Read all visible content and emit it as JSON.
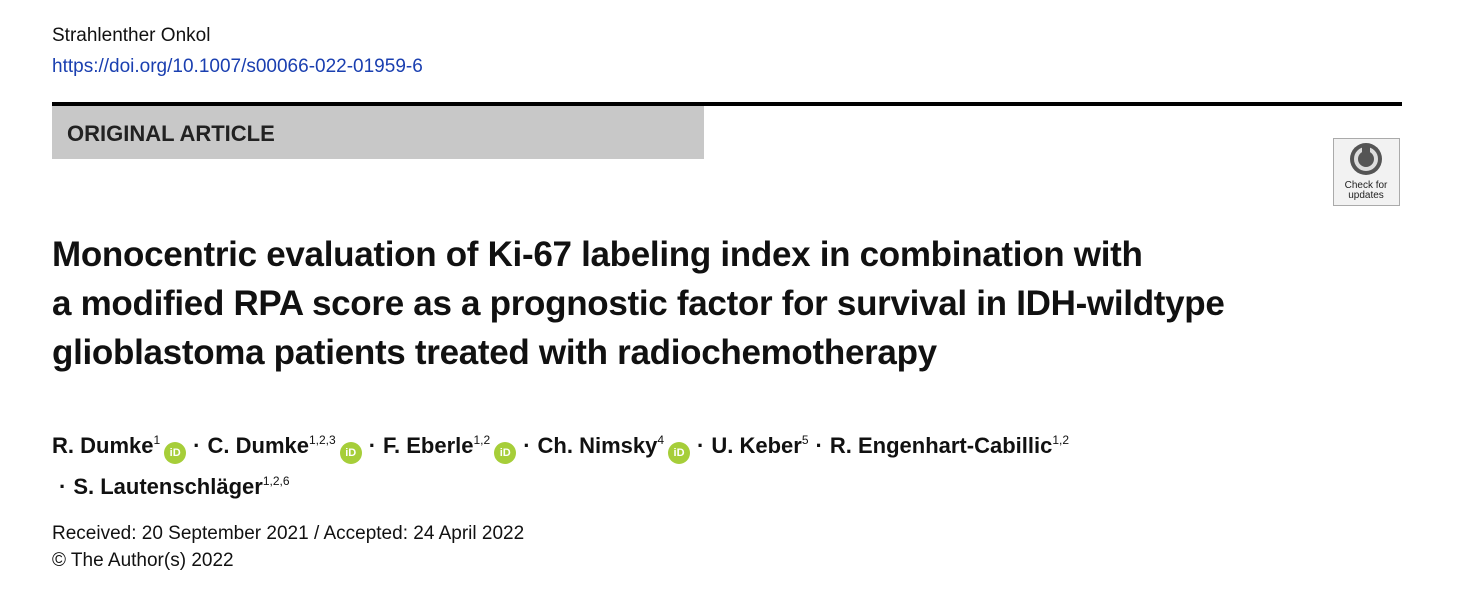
{
  "header": {
    "journal": "Strahlenther Onkol",
    "doi": "https://doi.org/10.1007/s00066-022-01959-6"
  },
  "article_type": "ORIGINAL ARTICLE",
  "badge": {
    "lines": [
      "Check for",
      "updates"
    ]
  },
  "title_lines": [
    "Monocentric evaluation of Ki-67 labeling index in combination with",
    "a modified RPA score as a prognostic factor for survival in IDH-wildtype",
    "glioblastoma patients treated with radiochemotherapy"
  ],
  "author_separator": "·",
  "orcid_icon_text": "iD",
  "author_lines": [
    [
      {
        "name": "R. Dumke",
        "affiliations": "1",
        "orcid": true
      },
      {
        "name": "C. Dumke",
        "affiliations": "1,2,3",
        "orcid": true
      },
      {
        "name": "F. Eberle",
        "affiliations": "1,2",
        "orcid": true
      },
      {
        "name": "Ch. Nimsky",
        "affiliations": "4",
        "orcid": true
      },
      {
        "name": "U. Keber",
        "affiliations": "5",
        "orcid": false
      },
      {
        "name": "R. Engenhart-Cabillic",
        "affiliations": "1,2",
        "orcid": false
      }
    ],
    [
      {
        "name": "S. Lautenschläger",
        "affiliations": "1,2,6",
        "orcid": false
      }
    ]
  ],
  "dates": {
    "received": "Received: 20 September 2021",
    "accepted": "Accepted: 24 April 2022",
    "joiner": "/"
  },
  "copyright": "© The Author(s) 2022"
}
